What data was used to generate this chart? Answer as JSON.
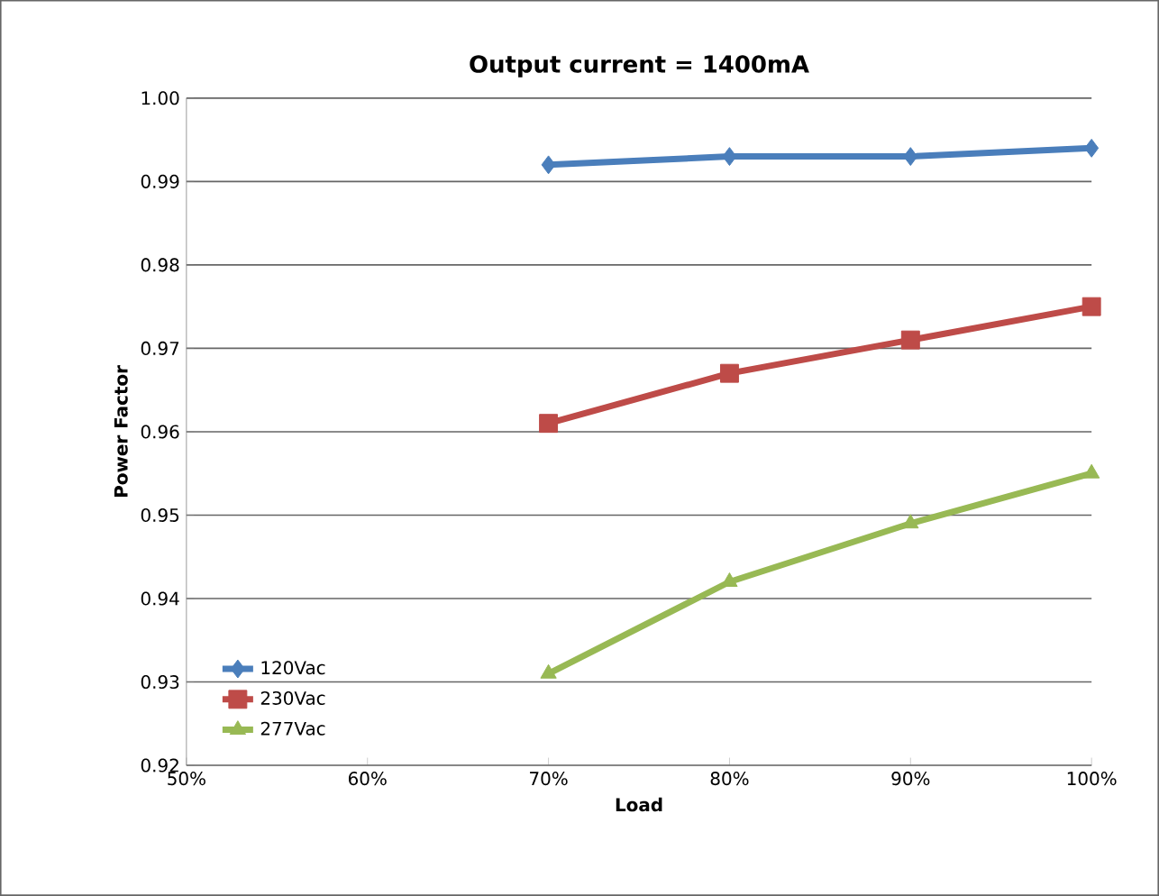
{
  "chart_data": {
    "type": "line",
    "title": "Output current = 1400mA",
    "xlabel": "Load",
    "ylabel": "Power Factor",
    "x": [
      70,
      80,
      90,
      100
    ],
    "series": [
      {
        "name": "120Vac",
        "color": "#4a7ebb",
        "marker": "diamond",
        "values": [
          0.992,
          0.993,
          0.993,
          0.994
        ]
      },
      {
        "name": "230Vac",
        "color": "#be4b48",
        "marker": "square",
        "values": [
          0.961,
          0.967,
          0.971,
          0.975
        ]
      },
      {
        "name": "277Vac",
        "color": "#98b954",
        "marker": "triangle",
        "values": [
          0.931,
          0.942,
          0.949,
          0.955
        ]
      }
    ],
    "xlim": [
      50,
      100
    ],
    "xticks": [
      {
        "value": 50,
        "label": "50%"
      },
      {
        "value": 60,
        "label": "60%"
      },
      {
        "value": 70,
        "label": "70%"
      },
      {
        "value": 80,
        "label": "80%"
      },
      {
        "value": 90,
        "label": "90%"
      },
      {
        "value": 100,
        "label": "100%"
      }
    ],
    "ylim": [
      0.92,
      1.0
    ],
    "yticks": [
      {
        "value": 0.92,
        "label": "0.92"
      },
      {
        "value": 0.93,
        "label": "0.93"
      },
      {
        "value": 0.94,
        "label": "0.94"
      },
      {
        "value": 0.95,
        "label": "0.95"
      },
      {
        "value": 0.96,
        "label": "0.96"
      },
      {
        "value": 0.97,
        "label": "0.97"
      },
      {
        "value": 0.98,
        "label": "0.98"
      },
      {
        "value": 0.99,
        "label": "0.99"
      },
      {
        "value": 1.0,
        "label": "1.00"
      }
    ],
    "grid": "y",
    "legend": "bottom left",
    "line_style": "solid"
  }
}
